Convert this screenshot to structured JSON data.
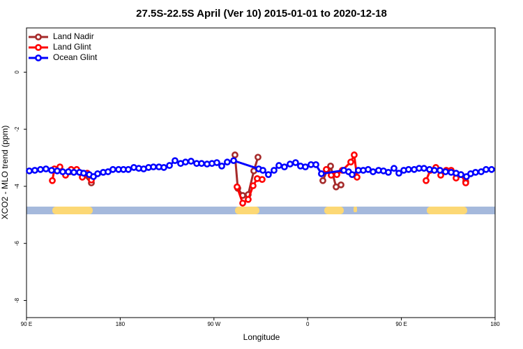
{
  "chart_data": {
    "type": "line",
    "title": "27.5S-22.5S April (Ver 10)   2015-01-01 to 2020-12-18",
    "xlabel": "Longitude",
    "ylabel": "XCO2 - MLO trend (ppm)",
    "xlim": [
      90,
      540
    ],
    "ylim": [
      -8.6,
      1.55
    ],
    "xticks": [
      {
        "value": 90,
        "label": "90 E"
      },
      {
        "value": 180,
        "label": "180"
      },
      {
        "value": 270,
        "label": "90 W"
      },
      {
        "value": 360,
        "label": "0"
      },
      {
        "value": 450,
        "label": "90 E"
      },
      {
        "value": 540,
        "label": "180"
      }
    ],
    "yticks": [
      0,
      -2,
      -4,
      -6,
      -8
    ],
    "legend": "upper left",
    "series": [
      {
        "name": "Land Nadir",
        "color": "#a52a2a",
        "x": [
          118.1,
          131.5,
          143.6,
          152.3,
          200,
          290.2,
          292.9,
          297.6,
          302.9,
          308.3,
          312.3,
          350,
          374.6,
          378.6,
          382.0,
          387.3,
          392.0,
          450,
          511.8
        ],
        "values": [
          -3.44,
          -3.49,
          -3.54,
          -3.88,
          null,
          -2.9,
          -4.07,
          -4.32,
          -4.29,
          -3.46,
          -2.98,
          null,
          -3.8,
          -3.44,
          -3.29,
          -4.02,
          -3.95,
          null,
          -3.83
        ]
      },
      {
        "name": "Land Glint",
        "color": "#ff0000",
        "x": [
          114.8,
          116.8,
          122.1,
          127.5,
          132.9,
          138.2,
          143.6,
          148.3,
          152.3,
          200,
          292.2,
          297.6,
          302.9,
          307.6,
          311.6,
          316.3,
          360,
          377.9,
          382.6,
          388.0,
          393.3,
          401.4,
          404.7,
          407.4,
          450,
          473.7,
          477.7,
          483.1,
          487.8,
          493.1,
          497.8,
          502.5,
          507.2,
          511.8
        ],
        "values": [
          -3.8,
          -3.39,
          -3.32,
          -3.61,
          -3.41,
          -3.41,
          -3.68,
          -3.54,
          -3.78,
          null,
          -4.02,
          -4.59,
          -4.46,
          -3.98,
          -3.73,
          -3.76,
          null,
          -3.41,
          -3.61,
          -3.59,
          -3.44,
          -3.15,
          -2.9,
          -3.68,
          null,
          -3.8,
          -3.44,
          -3.34,
          -3.61,
          -3.44,
          -3.44,
          -3.71,
          -3.59,
          -3.88
        ]
      },
      {
        "name": "Ocean Glint",
        "color": "#0000ff",
        "x": [
          92.7,
          98.0,
          103.4,
          108.7,
          114.1,
          119.5,
          124.8,
          130.2,
          135.5,
          140.9,
          144.9,
          150.3,
          154.3,
          158.3,
          163.7,
          168.3,
          173.0,
          178.4,
          183.1,
          187.8,
          193.1,
          197.8,
          202.5,
          207.2,
          211.9,
          217.2,
          221.9,
          227.3,
          232.6,
          238.0,
          242.7,
          248.0,
          253.4,
          258.1,
          263.4,
          268.1,
          272.8,
          277.5,
          282.8,
          288.9,
          313.0,
          317.0,
          322.3,
          327.7,
          332.4,
          337.7,
          343.1,
          348.4,
          353.1,
          357.8,
          363.2,
          367.9,
          373.2,
          394.7,
          399.3,
          402.7,
          408.7,
          413.4,
          418.1,
          422.8,
          428.1,
          432.8,
          437.5,
          442.9,
          447.6,
          452.3,
          456.9,
          462.3,
          467.0,
          471.7,
          477.0,
          481.7,
          487.1,
          492.4,
          497.8,
          502.5,
          507.2,
          512.5,
          516.5,
          521.2,
          526.6,
          531.3,
          536.6
        ],
        "values": [
          -3.46,
          -3.44,
          -3.41,
          -3.39,
          -3.44,
          -3.46,
          -3.49,
          -3.49,
          -3.51,
          -3.51,
          -3.54,
          -3.59,
          -3.66,
          -3.56,
          -3.51,
          -3.49,
          -3.41,
          -3.41,
          -3.41,
          -3.41,
          -3.34,
          -3.37,
          -3.39,
          -3.34,
          -3.32,
          -3.32,
          -3.34,
          -3.27,
          -3.1,
          -3.2,
          -3.15,
          -3.12,
          -3.2,
          -3.2,
          -3.22,
          -3.2,
          -3.17,
          -3.29,
          -3.15,
          -3.1,
          -3.39,
          -3.44,
          -3.59,
          -3.44,
          -3.27,
          -3.32,
          -3.22,
          -3.17,
          -3.29,
          -3.32,
          -3.24,
          -3.24,
          -3.56,
          -3.44,
          -3.49,
          -3.59,
          -3.44,
          -3.44,
          -3.41,
          -3.49,
          -3.44,
          -3.46,
          -3.51,
          -3.37,
          -3.54,
          -3.44,
          -3.41,
          -3.41,
          -3.37,
          -3.37,
          -3.41,
          -3.44,
          -3.44,
          -3.49,
          -3.51,
          -3.54,
          -3.59,
          -3.66,
          -3.56,
          -3.51,
          -3.49,
          -3.41,
          -3.41
        ]
      }
    ]
  }
}
